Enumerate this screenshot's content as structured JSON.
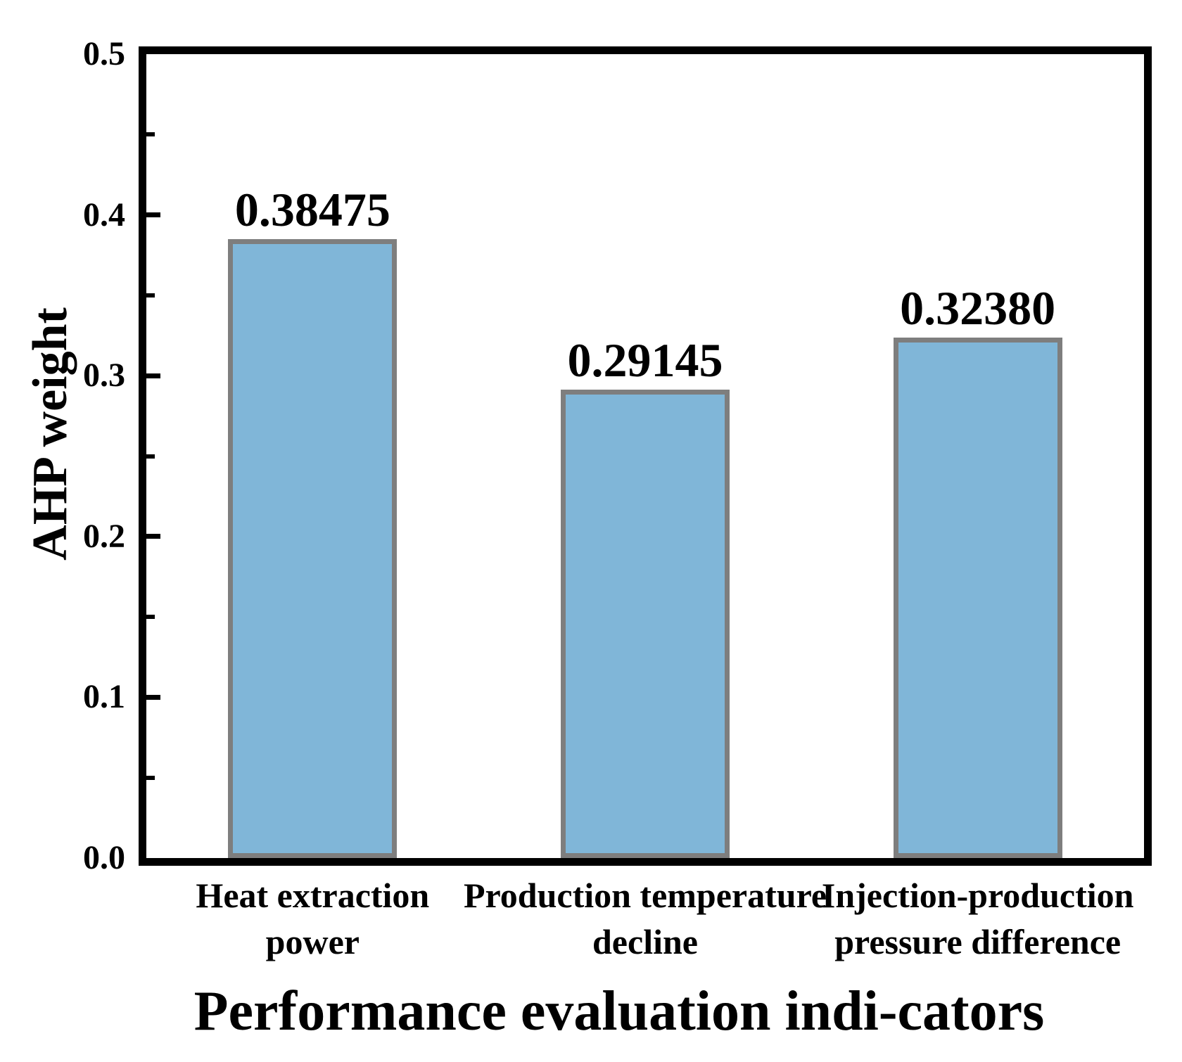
{
  "chart_data": {
    "type": "bar",
    "title": "",
    "xlabel": "Performance evaluation indi-cators",
    "ylabel": "AHP weight",
    "categories": [
      {
        "line1": "Heat extraction",
        "line2": "power"
      },
      {
        "line1": "Production temperature",
        "line2": "decline"
      },
      {
        "line1": "Injection-production",
        "line2": "pressure difference"
      }
    ],
    "values": [
      0.38475,
      0.29145,
      0.3238
    ],
    "value_labels": [
      "0.38475",
      "0.29145",
      "0.32380"
    ],
    "ylim": [
      0.0,
      0.5
    ],
    "y_tick_values": [
      0.0,
      0.1,
      0.2,
      0.3,
      0.4,
      0.5
    ],
    "y_tick_labels": [
      "0.0",
      "0.1",
      "0.2",
      "0.3",
      "0.4",
      "0.5"
    ],
    "y_minor_ticks": [
      0.05,
      0.15,
      0.25,
      0.35,
      0.45
    ],
    "grid": false,
    "legend": null,
    "bar_fill_color": "#80b6d8",
    "bar_edge_color": "#7e7e7e",
    "axis_color": "#000000",
    "text_color": "#000000",
    "background_color": "#ffffff"
  }
}
